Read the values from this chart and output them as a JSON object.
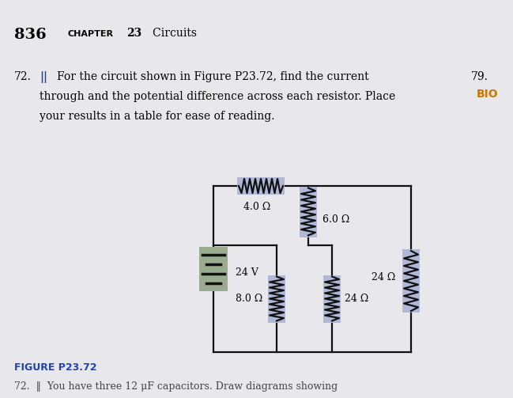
{
  "page_number": "836",
  "chapter_label": "CHAPTER",
  "chapter_num": "23",
  "chapter_title": "Circuits",
  "q_num": "72.",
  "q_mark": "||",
  "q_line1": "For the circuit shown in Figure P23.72, find the current",
  "q_line2": "through and the potential difference across each resistor. Place",
  "q_line3": "your results in a table for ease of reading.",
  "side_num": "79.",
  "side_label": "BIO",
  "figure_label": "FIGURE P23.72",
  "battery_label": "24 V",
  "r1_label": "4.0 Ω",
  "r2_label": "6.0 Ω",
  "r3_label": "24 Ω",
  "r4_label": "24 Ω",
  "r5_label": "8.0 Ω",
  "r6_label": "24 Ω",
  "bottom_text": "72.  ‖  You have three 12 μF capacitors. Draw diagrams showing",
  "page_bg": "#e8e8ec",
  "wire_color": "#111111",
  "highlight_blue": "#b0b8d8",
  "highlight_green": "#9aab90",
  "blue_text": "#2244aa",
  "orange_text": "#cc7700",
  "lw": 1.6
}
